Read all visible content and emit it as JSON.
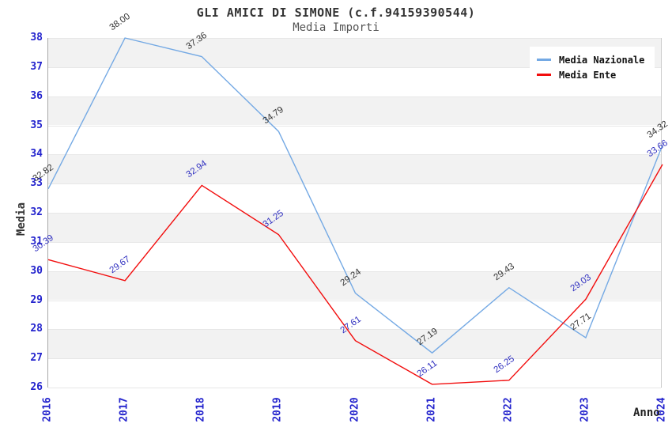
{
  "header": {
    "title": "GLI AMICI DI SIMONE (c.f.94159390544)",
    "subtitle": "Media Importi"
  },
  "axes": {
    "x_label": "Anno",
    "y_label": "Media"
  },
  "legend": {
    "position": "top-right",
    "items": [
      {
        "label": "Media Nazionale",
        "color": "#74a9e4"
      },
      {
        "label": "Media Ente",
        "color": "#f20d0d"
      }
    ]
  },
  "colors": {
    "tick_label": "#2323cd",
    "band_gray": "#f2f2f2",
    "grid_line": "#e7e7e7",
    "axis_line": "#a8a8a8",
    "title": "#333333",
    "subtitle": "#555555"
  },
  "chart_data": {
    "type": "line",
    "title": "GLI AMICI DI SIMONE (c.f.94159390544)",
    "subtitle": "Media Importi",
    "xlabel": "Anno",
    "ylabel": "Media",
    "x": [
      "2016",
      "2017",
      "2018",
      "2019",
      "2020",
      "2021",
      "2022",
      "2023",
      "2024"
    ],
    "ylim": [
      26,
      38
    ],
    "y_tick_step": 1,
    "grid": "alternating-horizontal-bands",
    "legend_position": "top-right",
    "point_labels": "shown, rotated, two decimals",
    "series": [
      {
        "name": "Media Nazionale",
        "color": "#74a9e4",
        "label_color": "#333333",
        "values": [
          32.82,
          38.0,
          37.36,
          34.79,
          29.24,
          27.19,
          29.43,
          27.71,
          34.32
        ]
      },
      {
        "name": "Media Ente",
        "color": "#f20d0d",
        "label_color": "#3030c0",
        "values": [
          30.39,
          29.67,
          32.94,
          31.25,
          27.61,
          26.11,
          26.25,
          29.03,
          33.66
        ]
      }
    ]
  }
}
